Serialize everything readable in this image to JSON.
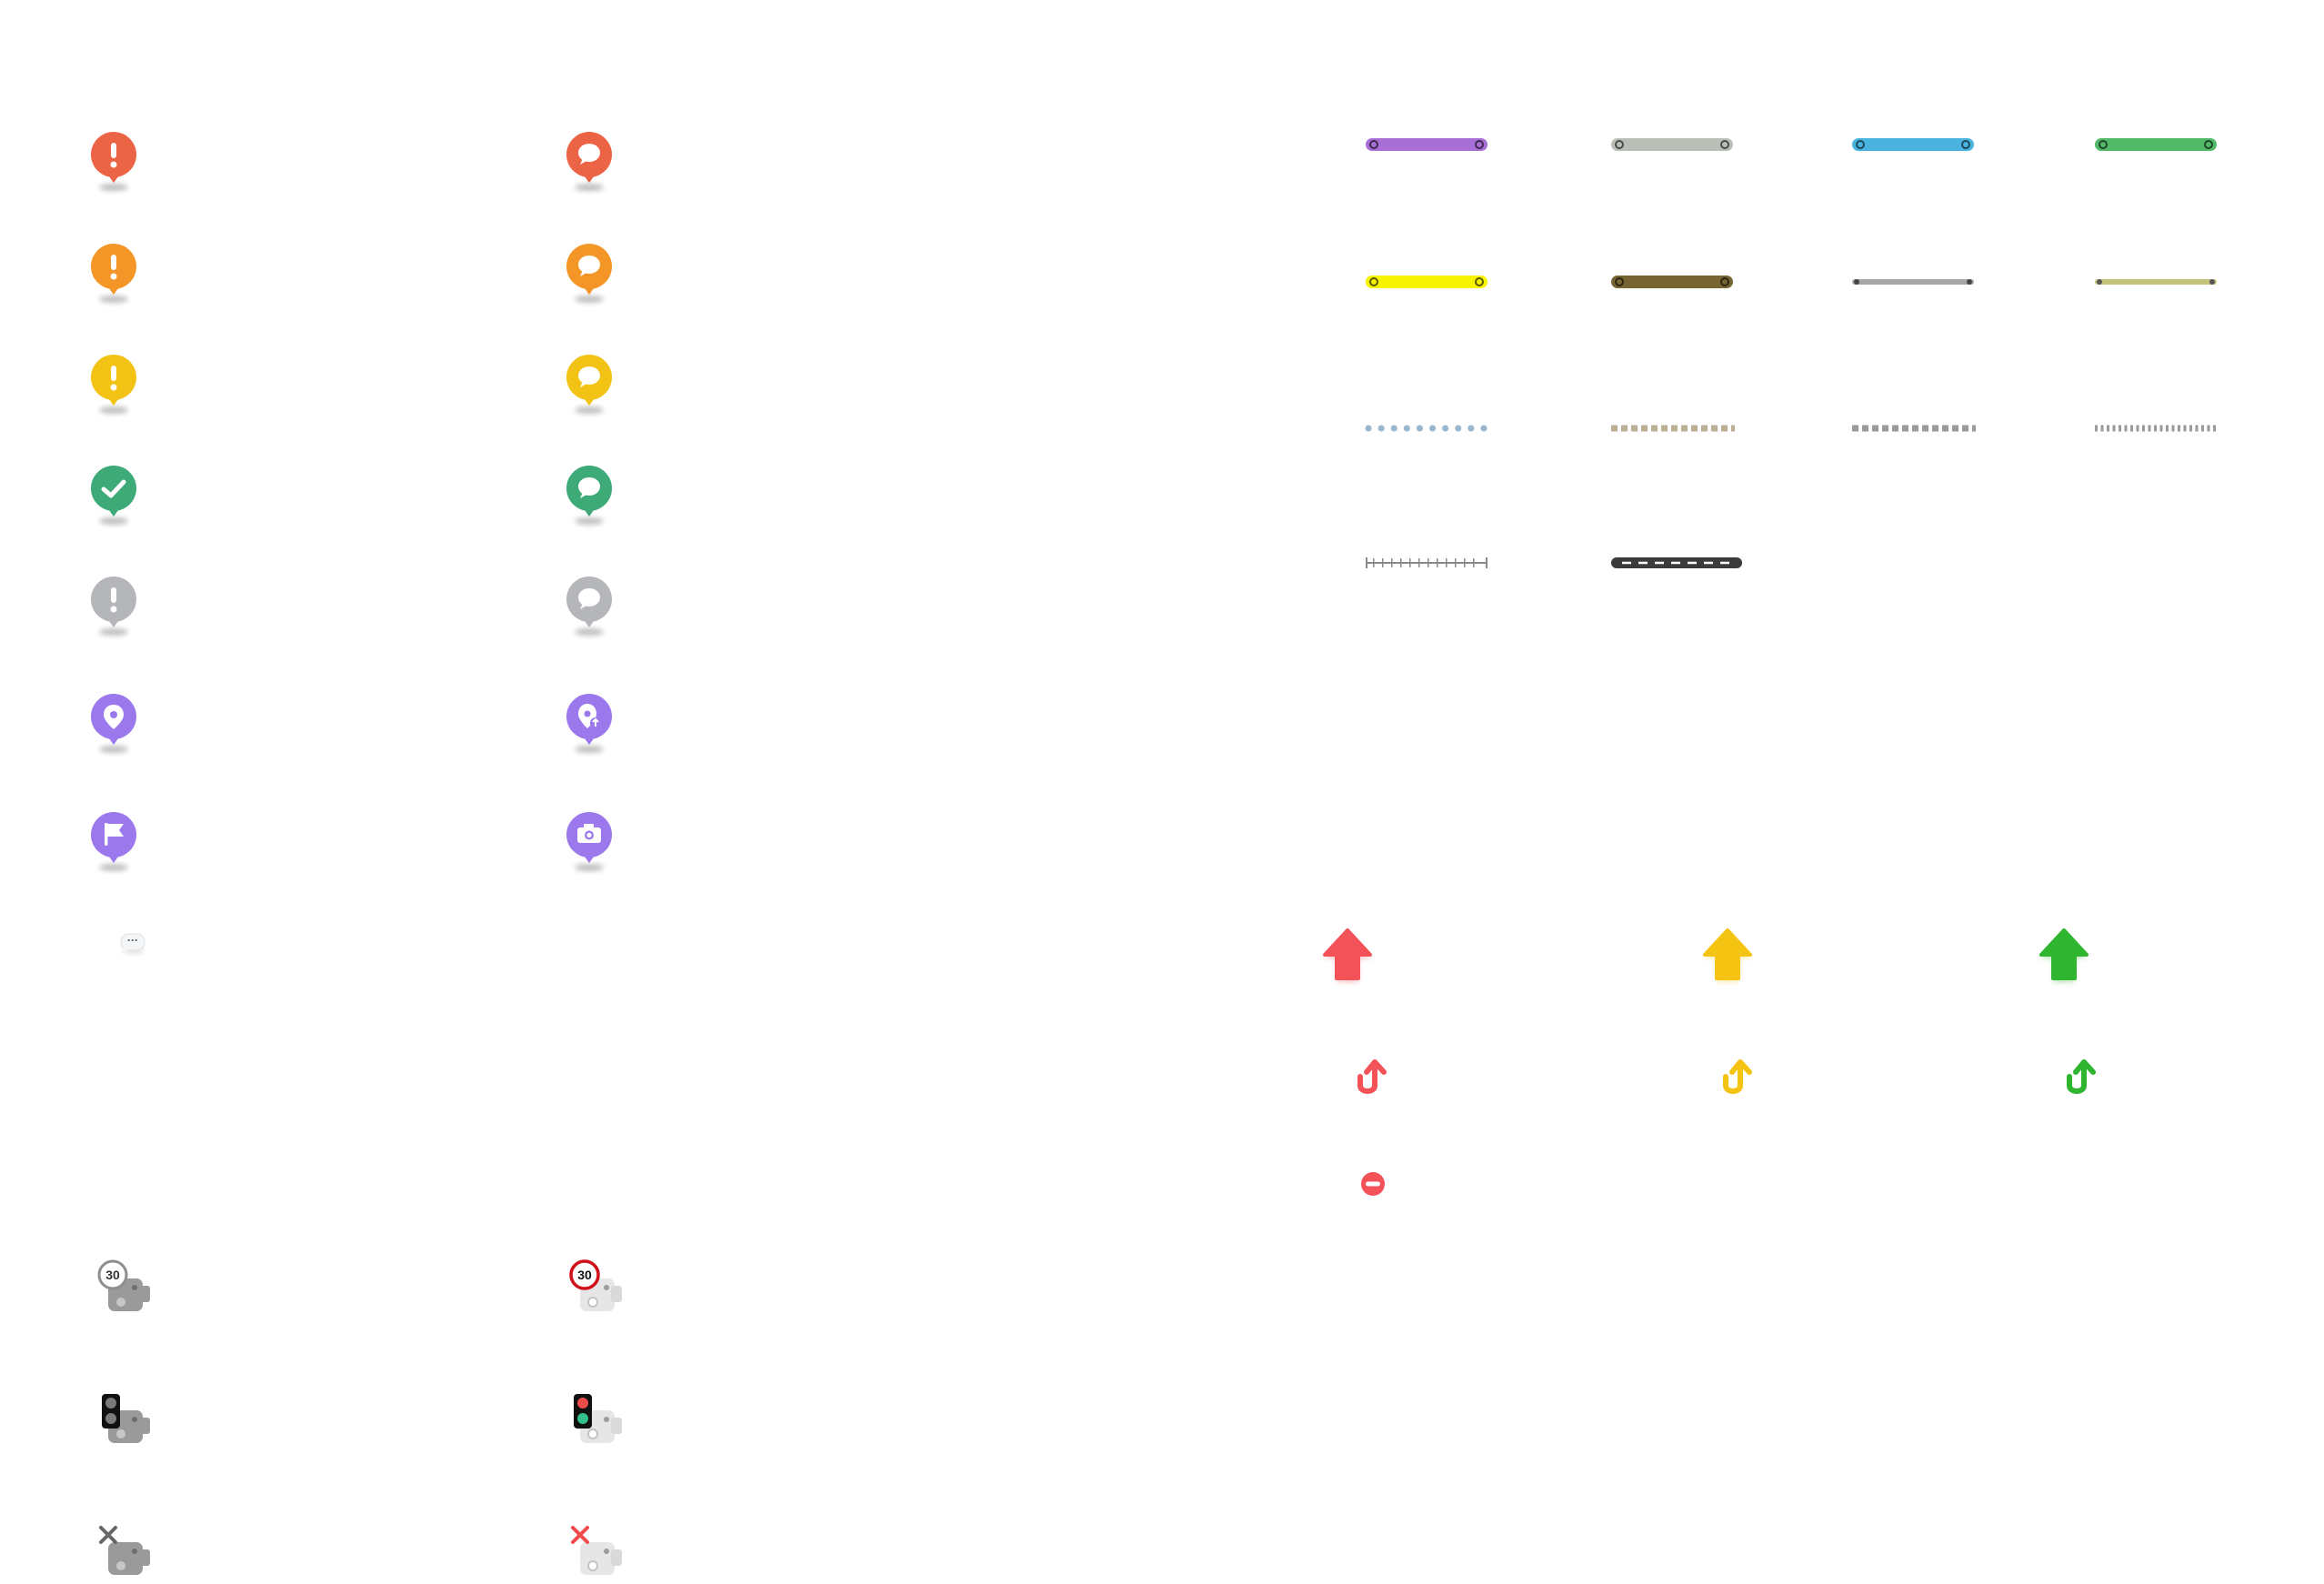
{
  "sheet": {
    "bubble_pins": {
      "alert_column": [
        {
          "color": "#ec6446",
          "glyph": "!"
        },
        {
          "color": "#f49528",
          "glyph": "!"
        },
        {
          "color": "#f2c314",
          "glyph": "!"
        },
        {
          "color": "#3eaa77",
          "glyph": "check-icon"
        },
        {
          "color": "#b4b6b9",
          "glyph": "!"
        },
        {
          "color": "#9b78ec",
          "glyph": "location-icon"
        },
        {
          "color": "#9b78ec",
          "glyph": "flag-icon"
        }
      ],
      "chat_column": [
        {
          "color": "#ec6446",
          "glyph": "chat-icon"
        },
        {
          "color": "#f49528",
          "glyph": "chat-icon"
        },
        {
          "color": "#f2c314",
          "glyph": "chat-icon"
        },
        {
          "color": "#3eaa77",
          "glyph": "chat-icon"
        },
        {
          "color": "#b4b6b9",
          "glyph": "chat-icon"
        },
        {
          "color": "#9b78ec",
          "glyph": "location-plus-icon"
        },
        {
          "color": "#9b78ec",
          "glyph": "camera-icon"
        }
      ],
      "small_bubble": {
        "text": "···",
        "glyph": "speech-bubble-icon"
      }
    },
    "route_swatches": [
      {
        "style": "solid-rounded",
        "color": "#a86fd6",
        "end": "ring"
      },
      {
        "style": "solid-rounded",
        "color": "#b9bfb6",
        "end": "ring"
      },
      {
        "style": "solid-rounded",
        "color": "#4bb3e0",
        "end": "ring"
      },
      {
        "style": "solid-rounded",
        "color": "#52b969",
        "end": "ring"
      },
      {
        "style": "solid-rounded",
        "color": "#f8f400",
        "end": "ring"
      },
      {
        "style": "solid-rounded",
        "color": "#766533",
        "end": "ring"
      },
      {
        "style": "thin",
        "color": "#a7a7a7",
        "end": "dot"
      },
      {
        "style": "thin",
        "color": "#c5c27a",
        "end": "dot"
      },
      {
        "style": "dotted",
        "color": "#99b6cf"
      },
      {
        "style": "dashed-square",
        "color": "#bbb094"
      },
      {
        "style": "dashed-square",
        "color": "#9a9a9a"
      },
      {
        "style": "fine-dash",
        "color": "#9a9a9a"
      },
      {
        "style": "tick-rail",
        "color": "#8a8a8a"
      },
      {
        "style": "railway",
        "color": "#3b3b3b"
      }
    ],
    "direction_arrows": [
      {
        "color": "#f35358",
        "glyph": "arrow-up-icon"
      },
      {
        "color": "#f5c312",
        "glyph": "arrow-up-icon"
      },
      {
        "color": "#2fb52f",
        "glyph": "arrow-up-icon"
      }
    ],
    "uturn_arrows": [
      {
        "color": "#f35358",
        "glyph": "u-turn-icon"
      },
      {
        "color": "#f5c312",
        "glyph": "u-turn-icon"
      },
      {
        "color": "#2fb52f",
        "glyph": "u-turn-icon"
      }
    ],
    "no_entry": {
      "color": "#f35358",
      "glyph": "no-entry-icon"
    },
    "cameras": {
      "gray_column": [
        {
          "badge": "30",
          "glyph": "speed-camera-icon"
        },
        {
          "badge": "",
          "glyph": "traffic-light-camera-icon"
        },
        {
          "badge": "",
          "glyph": "camera-off-icon"
        }
      ],
      "color_column": [
        {
          "badge": "30",
          "glyph": "speed-camera-icon"
        },
        {
          "badge": "",
          "glyph": "traffic-light-camera-icon"
        },
        {
          "badge": "",
          "glyph": "camera-off-icon"
        }
      ],
      "gray_badge_color": "#8e8e8e",
      "red_badge_color": "#d0111a"
    }
  }
}
